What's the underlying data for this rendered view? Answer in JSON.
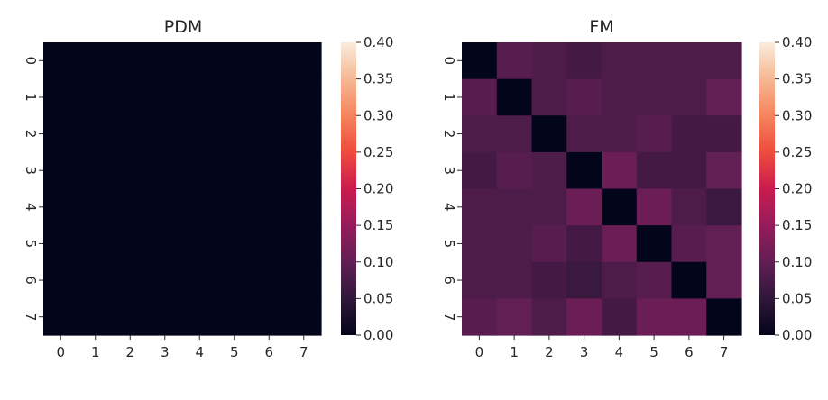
{
  "chart_data": [
    {
      "type": "heatmap",
      "title": "PDM",
      "xlabel": "",
      "ylabel": "",
      "x_ticks": [
        "0",
        "1",
        "2",
        "3",
        "4",
        "5",
        "6",
        "7"
      ],
      "y_ticks": [
        "0",
        "1",
        "2",
        "3",
        "4",
        "5",
        "6",
        "7"
      ],
      "vmin": 0.0,
      "vmax": 0.4,
      "colormap": "rocket",
      "colorbar_ticks": [
        "0.00",
        "0.05",
        "0.10",
        "0.15",
        "0.20",
        "0.25",
        "0.30",
        "0.35",
        "0.40"
      ],
      "values": [
        [
          0.0,
          0.0,
          0.0,
          0.0,
          0.0,
          0.0,
          0.0,
          0.0
        ],
        [
          0.0,
          0.0,
          0.0,
          0.0,
          0.0,
          0.0,
          0.0,
          0.0
        ],
        [
          0.0,
          0.0,
          0.0,
          0.0,
          0.0,
          0.0,
          0.0,
          0.0
        ],
        [
          0.0,
          0.0,
          0.0,
          0.0,
          0.0,
          0.0,
          0.0,
          0.0
        ],
        [
          0.0,
          0.0,
          0.0,
          0.0,
          0.0,
          0.0,
          0.0,
          0.0
        ],
        [
          0.0,
          0.0,
          0.0,
          0.0,
          0.0,
          0.0,
          0.0,
          0.0
        ],
        [
          0.0,
          0.0,
          0.0,
          0.0,
          0.0,
          0.0,
          0.0,
          0.0
        ],
        [
          0.0,
          0.0,
          0.0,
          0.0,
          0.0,
          0.0,
          0.0,
          0.0
        ]
      ]
    },
    {
      "type": "heatmap",
      "title": "FM",
      "xlabel": "",
      "ylabel": "",
      "x_ticks": [
        "0",
        "1",
        "2",
        "3",
        "4",
        "5",
        "6",
        "7"
      ],
      "y_ticks": [
        "0",
        "1",
        "2",
        "3",
        "4",
        "5",
        "6",
        "7"
      ],
      "vmin": 0.0,
      "vmax": 0.4,
      "colormap": "rocket",
      "colorbar_ticks": [
        "0.00",
        "0.05",
        "0.10",
        "0.15",
        "0.20",
        "0.25",
        "0.30",
        "0.35",
        "0.40"
      ],
      "values": [
        [
          0.0,
          0.09,
          0.08,
          0.07,
          0.08,
          0.08,
          0.08,
          0.08
        ],
        [
          0.09,
          0.0,
          0.08,
          0.09,
          0.08,
          0.08,
          0.08,
          0.1
        ],
        [
          0.08,
          0.08,
          0.0,
          0.08,
          0.08,
          0.09,
          0.07,
          0.07
        ],
        [
          0.07,
          0.09,
          0.08,
          0.0,
          0.11,
          0.07,
          0.07,
          0.1
        ],
        [
          0.08,
          0.08,
          0.08,
          0.11,
          0.0,
          0.11,
          0.08,
          0.06
        ],
        [
          0.08,
          0.08,
          0.09,
          0.07,
          0.11,
          0.0,
          0.09,
          0.1
        ],
        [
          0.08,
          0.08,
          0.07,
          0.06,
          0.08,
          0.09,
          0.0,
          0.1
        ],
        [
          0.09,
          0.1,
          0.08,
          0.11,
          0.07,
          0.11,
          0.11,
          0.0
        ]
      ]
    }
  ]
}
